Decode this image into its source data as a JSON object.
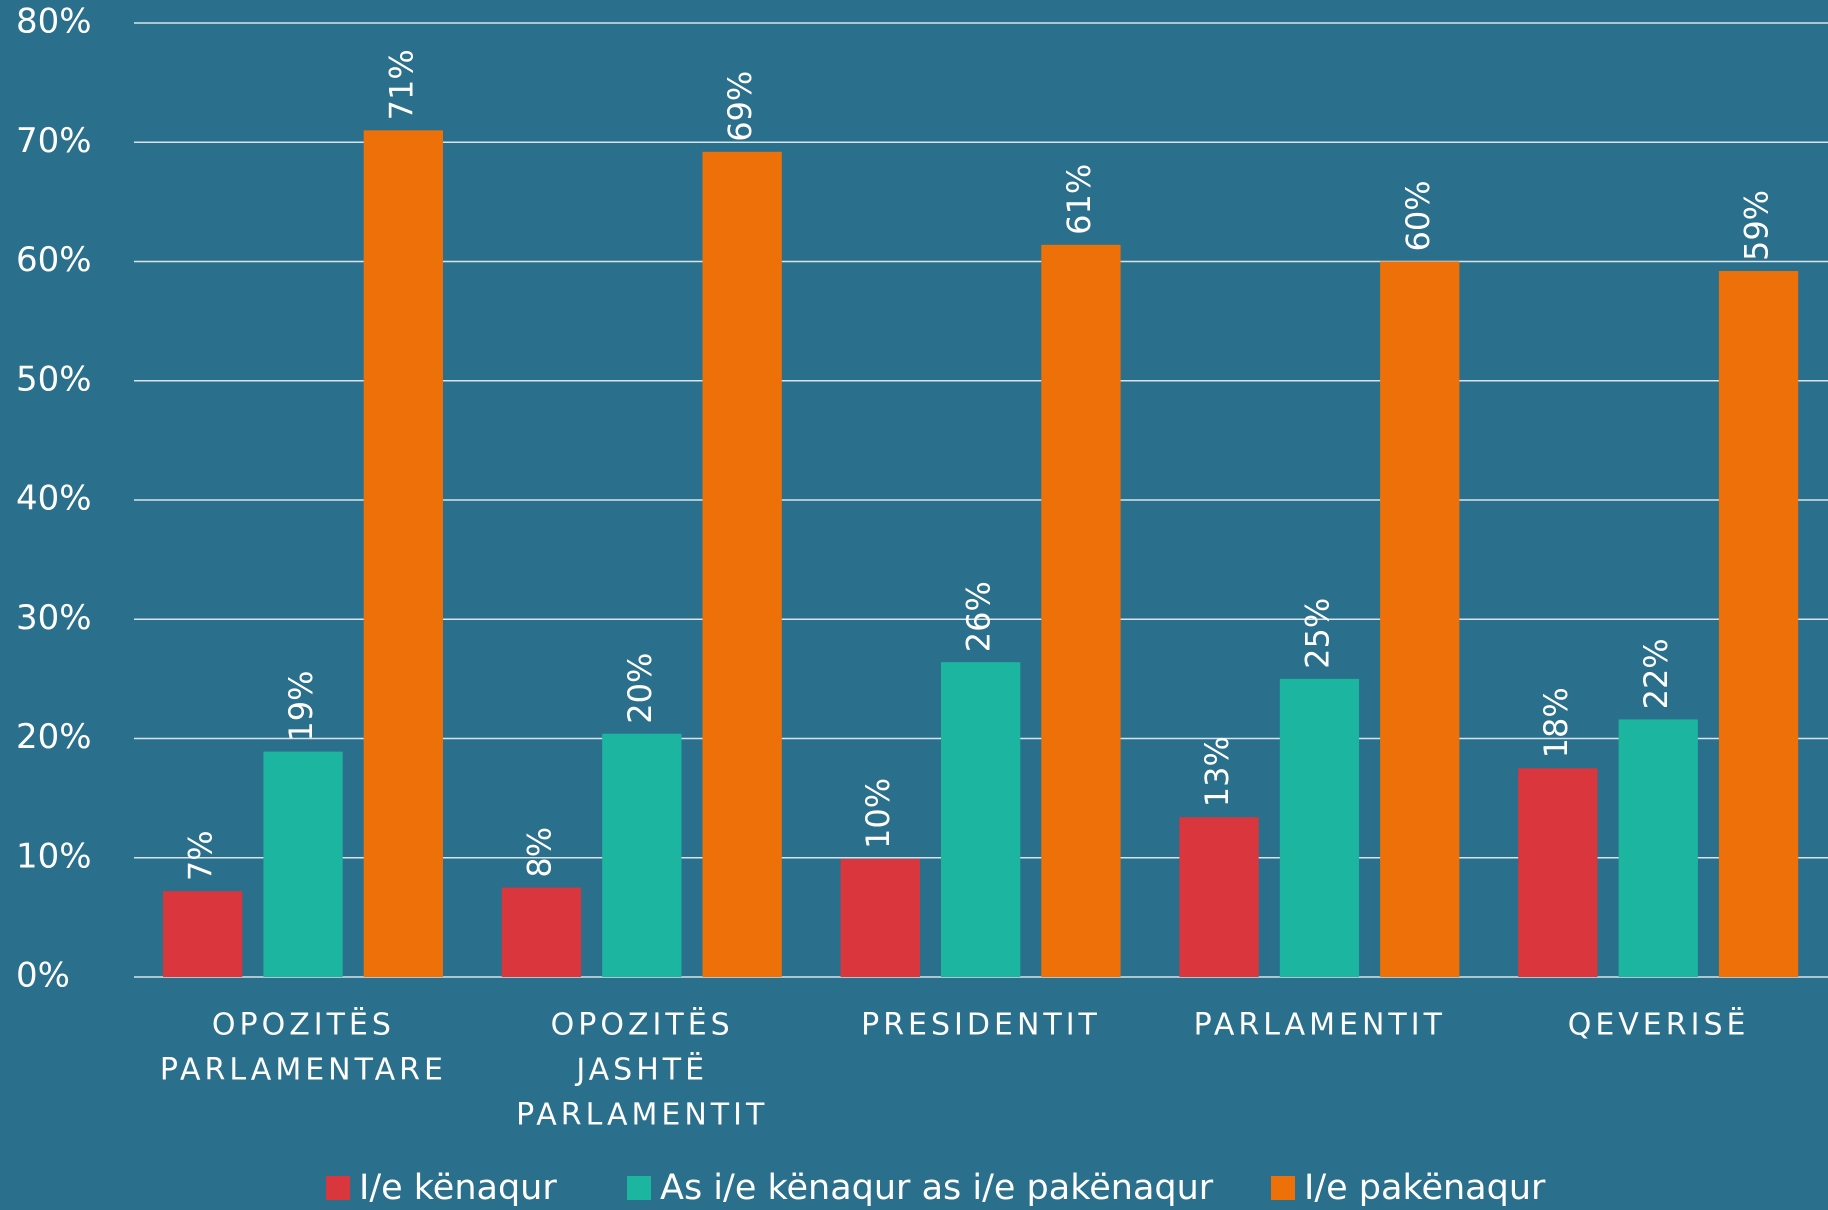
{
  "chart_data": {
    "type": "bar",
    "categories": [
      [
        "OPOZITËS",
        "PARLAMENTARE"
      ],
      [
        "OPOZITËS",
        "JASHTË",
        "PARLAMENTIT"
      ],
      [
        "PRESIDENTIT"
      ],
      [
        "PARLAMENTIT"
      ],
      [
        "QEVERISË"
      ]
    ],
    "series": [
      {
        "name": "I/e kënaqur",
        "color": "#d9363e",
        "values": [
          7.2,
          7.5,
          9.9,
          13.4,
          17.5
        ],
        "value_labels": [
          "7%",
          "8%",
          "10%",
          "13%",
          "18%"
        ]
      },
      {
        "name": "As i/e kënaqur as i/e pakënaqur",
        "color": "#1bb5a0",
        "values": [
          18.9,
          20.4,
          26.4,
          25,
          21.6
        ],
        "value_labels": [
          "19%",
          "20%",
          "26%",
          "25%",
          "22%"
        ]
      },
      {
        "name": "I/e pakënaqur",
        "color": "#ee7008",
        "values": [
          71,
          69.2,
          61.4,
          60,
          59.2
        ],
        "value_labels": [
          "71%",
          "69%",
          "61%",
          "60%",
          "59%"
        ]
      }
    ],
    "ylim": [
      0,
      80
    ],
    "yticks": [
      {
        "value": 0,
        "label": "0%"
      },
      {
        "value": 10,
        "label": "10%"
      },
      {
        "value": 20,
        "label": "20%"
      },
      {
        "value": 30,
        "label": "30%"
      },
      {
        "value": 40,
        "label": "40%"
      },
      {
        "value": 50,
        "label": "50%"
      },
      {
        "value": 60,
        "label": "60%"
      },
      {
        "value": 70,
        "label": "70%"
      },
      {
        "value": 80,
        "label": "80%"
      }
    ],
    "grid": true,
    "legend": "bottom"
  }
}
